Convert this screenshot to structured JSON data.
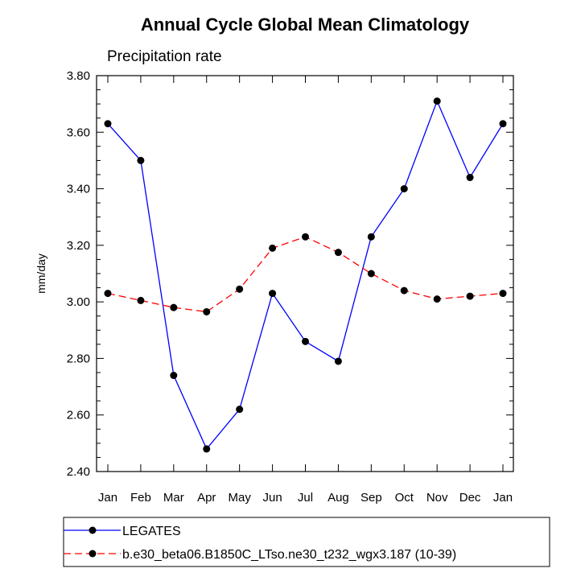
{
  "chart_data": {
    "type": "line",
    "title": "Annual Cycle Global Mean Climatology",
    "subtitle": "Precipitation rate",
    "ylabel": "mm/day",
    "xlabel": "",
    "categories": [
      "Jan",
      "Feb",
      "Mar",
      "Apr",
      "May",
      "Jun",
      "Jul",
      "Aug",
      "Sep",
      "Oct",
      "Nov",
      "Dec",
      "Jan"
    ],
    "ylim": [
      2.4,
      3.8
    ],
    "yticks": [
      "2.40",
      "2.60",
      "2.80",
      "3.00",
      "3.20",
      "3.40",
      "3.60",
      "3.80"
    ],
    "grid": false,
    "legend_position": "bottom",
    "series": [
      {
        "name": "LEGATES",
        "color": "#0000ff",
        "line_style": "solid",
        "values": [
          3.63,
          3.5,
          2.74,
          2.48,
          2.62,
          3.03,
          2.86,
          2.79,
          3.23,
          3.4,
          3.71,
          3.44,
          3.63
        ]
      },
      {
        "name": "b.e30_beta06.B1850C_LTso.ne30_t232_wgx3.187 (10-39)",
        "color": "#ff0000",
        "line_style": "dashed",
        "values": [
          3.03,
          3.005,
          2.98,
          2.965,
          3.045,
          3.19,
          3.23,
          3.175,
          3.1,
          3.04,
          3.01,
          3.02,
          3.03
        ]
      }
    ]
  }
}
